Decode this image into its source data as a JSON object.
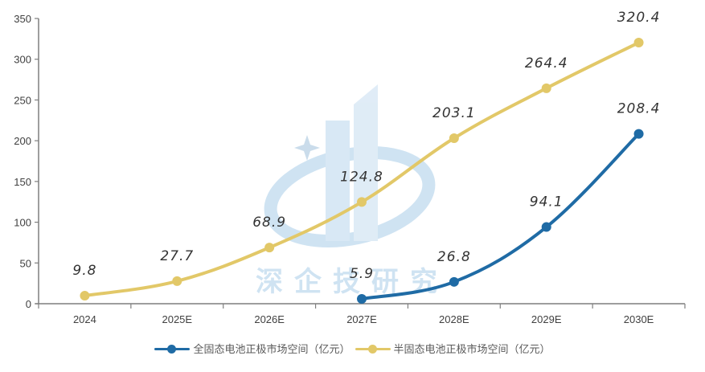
{
  "chart_data": {
    "type": "line",
    "title": "",
    "xlabel": "",
    "ylabel": "",
    "categories": [
      "2024",
      "2025E",
      "2026E",
      "2027E",
      "2028E",
      "2029E",
      "2030E"
    ],
    "ylim": [
      0,
      350
    ],
    "yticks": [
      0,
      50,
      100,
      150,
      200,
      250,
      300,
      350
    ],
    "grid": false,
    "legend_position": "bottom",
    "smooth": true,
    "series": [
      {
        "name": "全固态电池正极市场空间（亿元）",
        "color": "#1f6ba5",
        "values": [
          null,
          null,
          null,
          5.9,
          26.8,
          94.1,
          208.4
        ],
        "labels": [
          "",
          "",
          "",
          "5.9",
          "26.8",
          "94.1",
          "208.4"
        ]
      },
      {
        "name": "半固态电池正极市场空间（亿元）",
        "color": "#e2c868",
        "values": [
          9.8,
          27.7,
          68.9,
          124.8,
          203.1,
          264.4,
          320.4
        ],
        "labels": [
          "9.8",
          "27.7",
          "68.9",
          "124.8",
          "203.1",
          "264.4",
          "320.4"
        ]
      }
    ]
  },
  "watermark": {
    "text": "深企技研究"
  },
  "legend": {
    "items": [
      {
        "label": "全固态电池正极市场空间（亿元）",
        "color": "#1f6ba5"
      },
      {
        "label": "半固态电池正极市场空间（亿元）",
        "color": "#e2c868"
      }
    ]
  }
}
